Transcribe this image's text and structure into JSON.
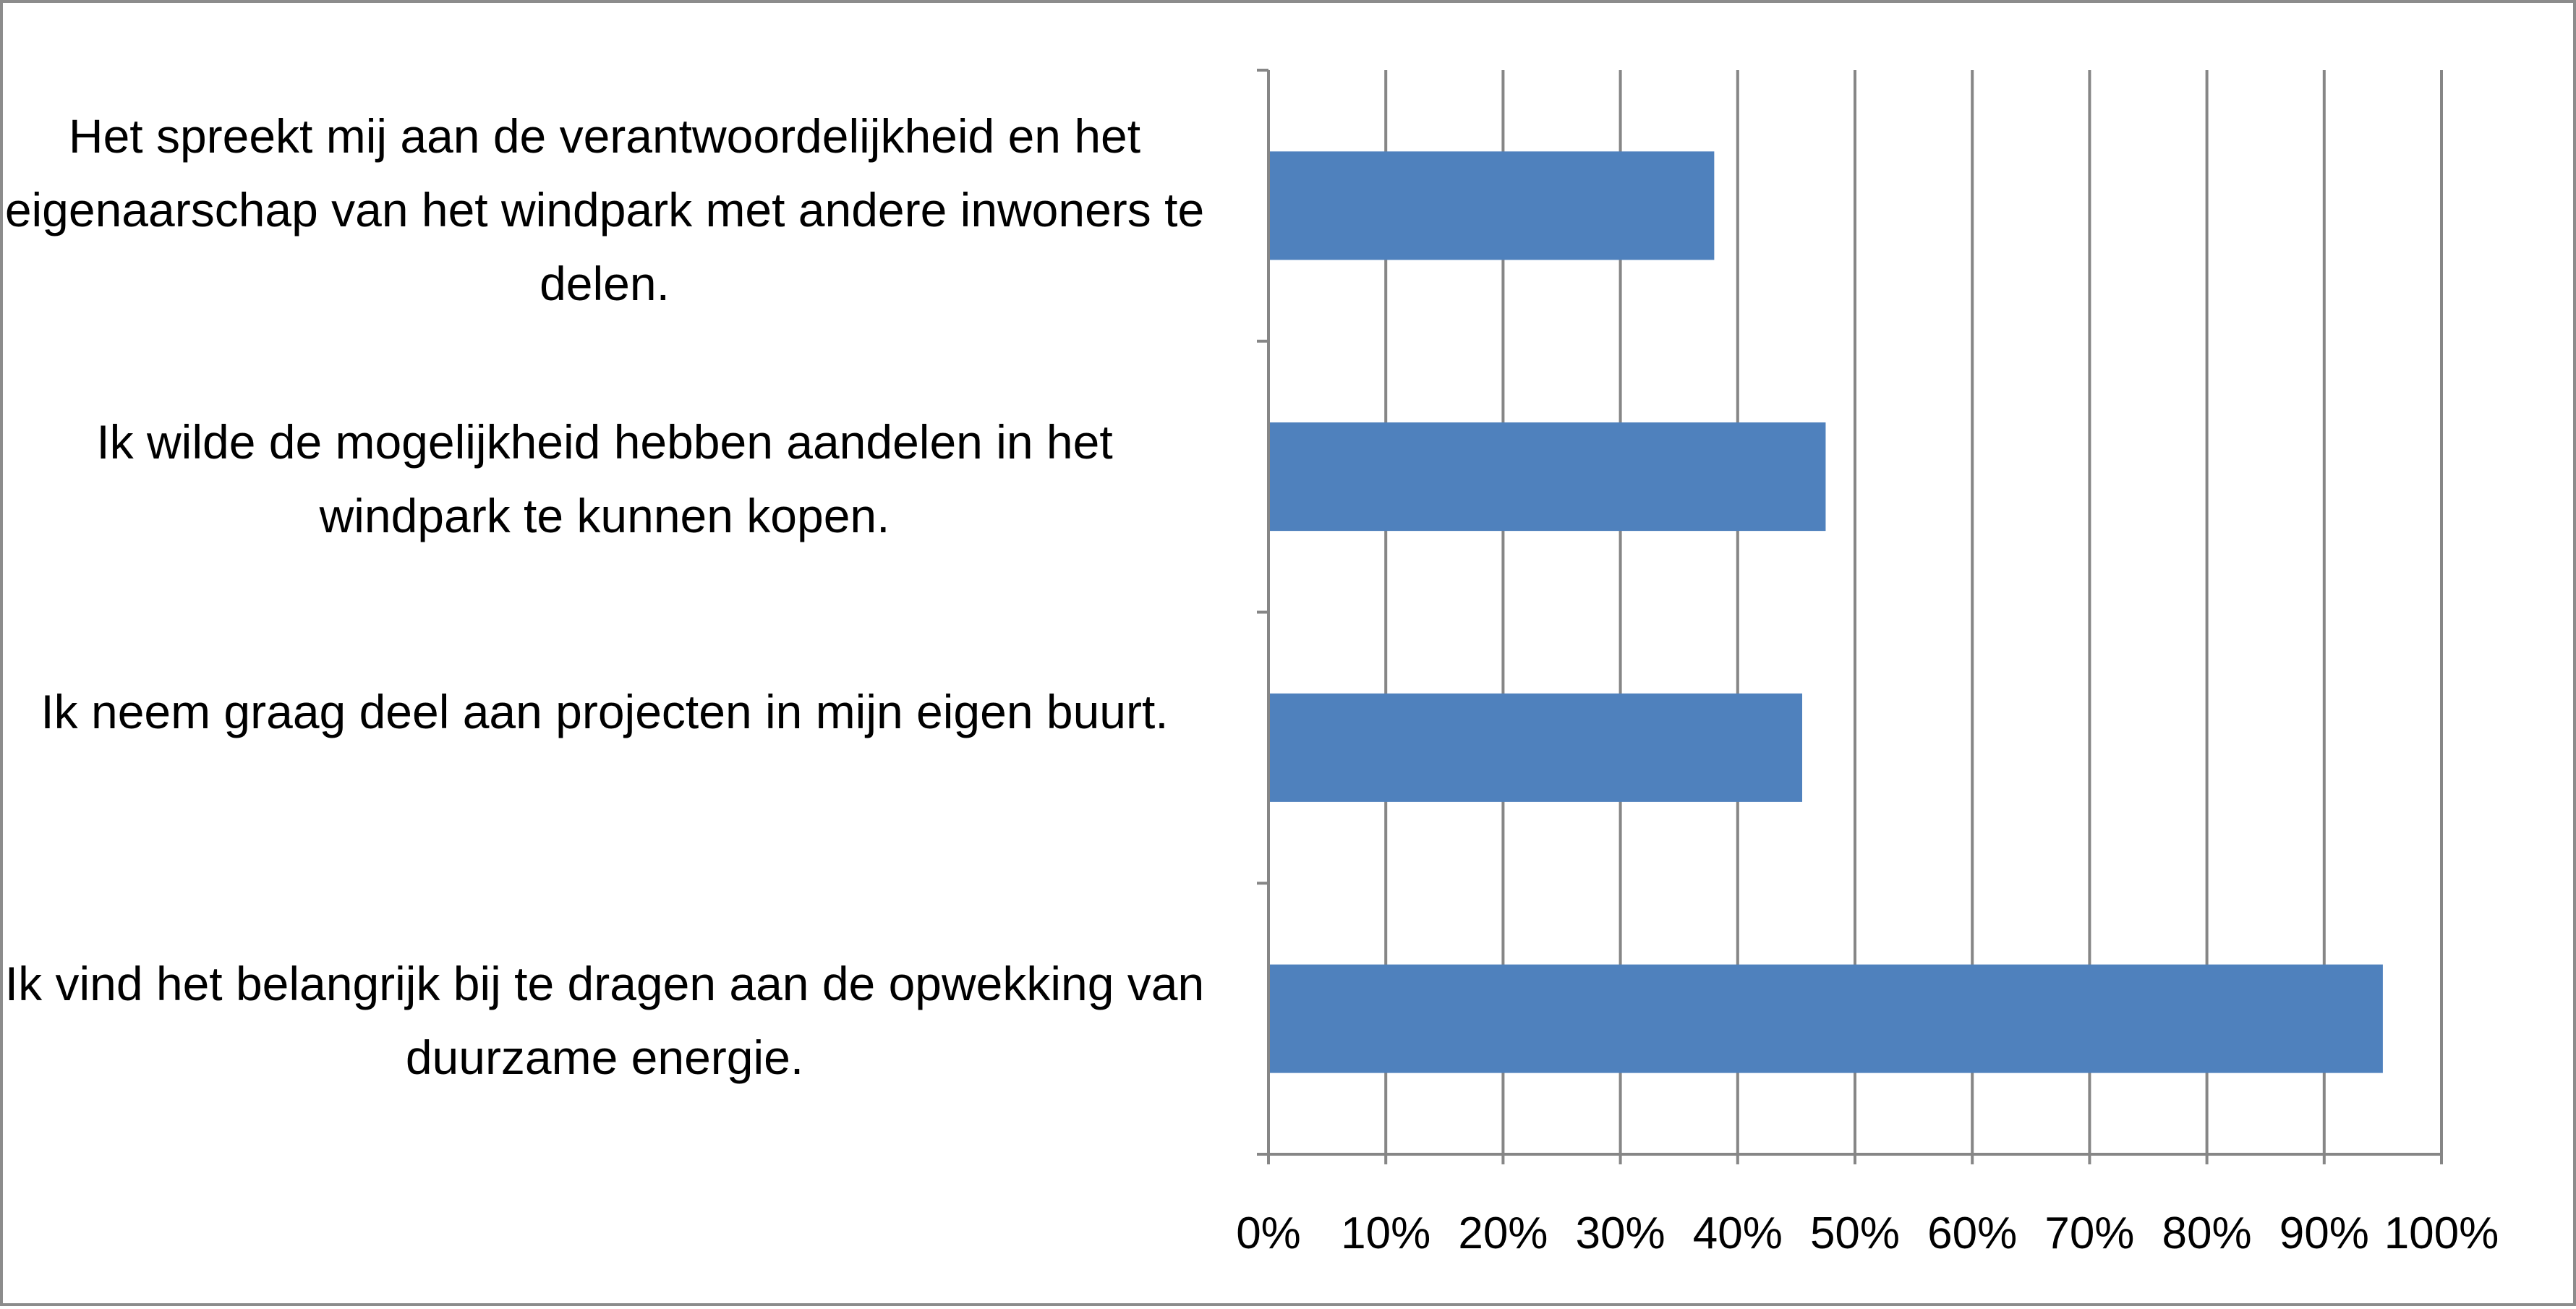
{
  "chart_data": {
    "type": "bar",
    "orientation": "horizontal",
    "categories": [
      "Het spreekt mij aan de verantwoordelijkheid en het eigenaarschap van het windpark met andere inwoners te delen.",
      "Ik wilde de mogelijkheid hebben aandelen in het windpark te kunnen kopen.",
      "Ik neem graag deel aan projecten in mijn eigen buurt.",
      "Ik vind het belangrijk bij te dragen aan de opwekking van duurzame energie."
    ],
    "values": [
      38,
      47.5,
      45.5,
      95
    ],
    "xlim": [
      0,
      100
    ],
    "x_ticks": [
      "0%",
      "10%",
      "20%",
      "30%",
      "40%",
      "50%",
      "60%",
      "70%",
      "80%",
      "90%",
      "100%"
    ],
    "grid": "vertical",
    "legend": "none",
    "title": "",
    "xlabel": "",
    "ylabel": "",
    "bar_color": "#4f81bd",
    "grid_color": "#868686",
    "frame_color": "#8c8c8c"
  }
}
